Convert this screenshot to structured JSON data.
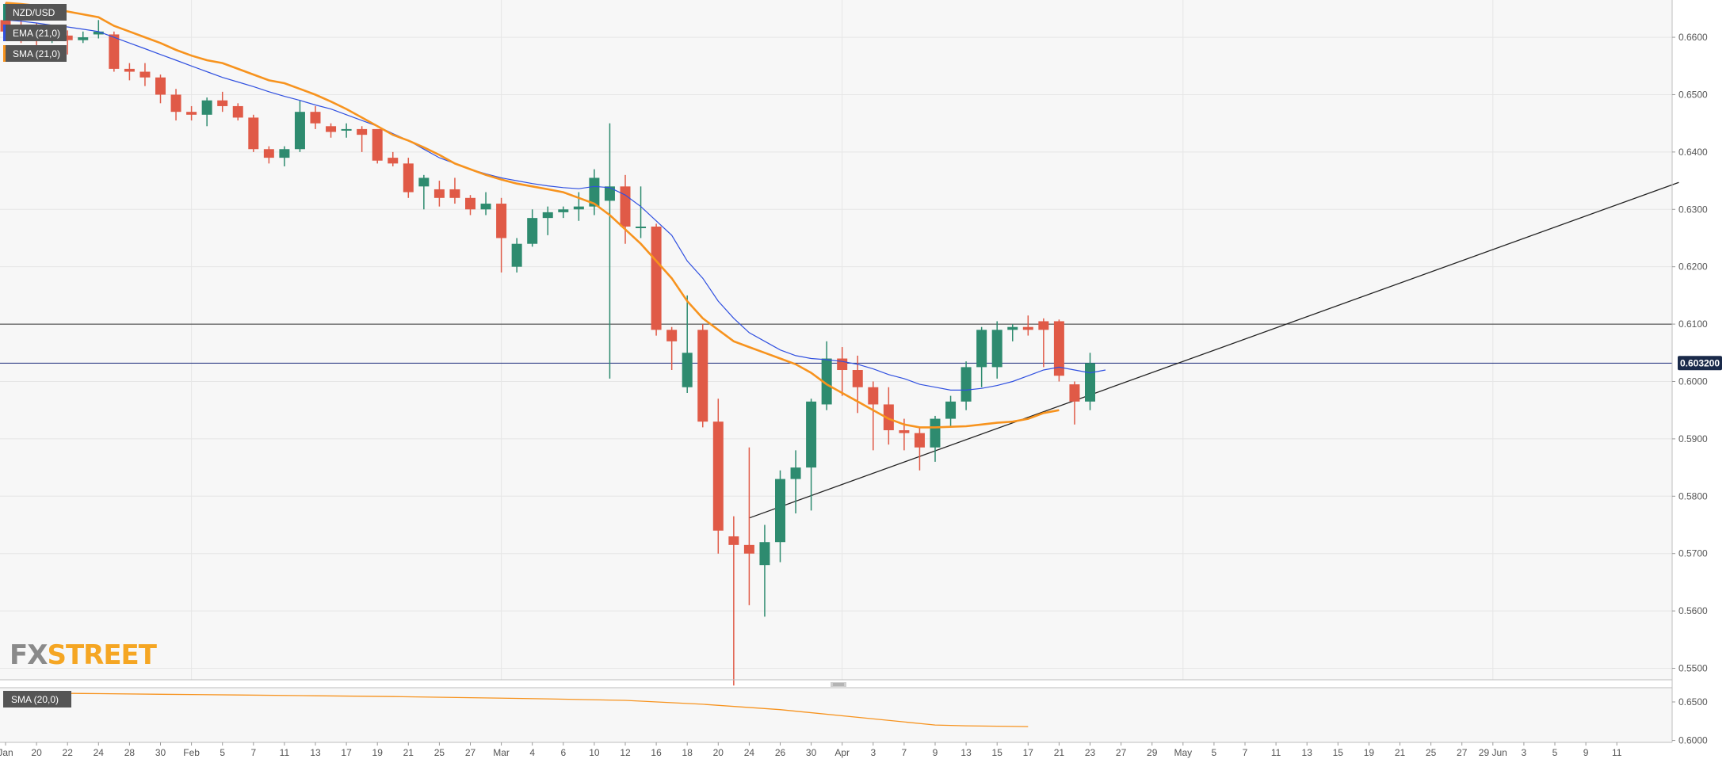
{
  "chart_data": [
    {
      "type": "candlestick",
      "symbol": "NZD/USD",
      "indicators": [
        {
          "label": "EMA (21,0)",
          "color": "#3050e0"
        },
        {
          "label": "SMA (21,0)",
          "color": "#f7931e"
        }
      ],
      "current_price_label": "0.603200",
      "current_price": 0.6032,
      "resistance_level": 0.61,
      "trendline": {
        "from": {
          "index": 48,
          "y": 0.5762
        },
        "to": {
          "index": 108,
          "y": 0.6347
        }
      },
      "ylim": [
        0.548,
        0.6665
      ],
      "y_ticks": [
        "0.6600",
        "0.6500",
        "0.6400",
        "0.6300",
        "0.6200",
        "0.6100",
        "0.6000",
        "0.5900",
        "0.5800",
        "0.5700",
        "0.5600",
        "0.5500"
      ],
      "x_ticks": [
        {
          "label": "Jan",
          "index": 0
        },
        {
          "label": "20",
          "index": 2
        },
        {
          "label": "22",
          "index": 4
        },
        {
          "label": "24",
          "index": 6
        },
        {
          "label": "28",
          "index": 8
        },
        {
          "label": "30",
          "index": 10
        },
        {
          "label": "Feb",
          "index": 12
        },
        {
          "label": "5",
          "index": 14
        },
        {
          "label": "7",
          "index": 16
        },
        {
          "label": "11",
          "index": 18
        },
        {
          "label": "13",
          "index": 20
        },
        {
          "label": "17",
          "index": 22
        },
        {
          "label": "19",
          "index": 24
        },
        {
          "label": "21",
          "index": 26
        },
        {
          "label": "25",
          "index": 28
        },
        {
          "label": "27",
          "index": 30
        },
        {
          "label": "Mar",
          "index": 32
        },
        {
          "label": "4",
          "index": 34
        },
        {
          "label": "6",
          "index": 36
        },
        {
          "label": "10",
          "index": 38
        },
        {
          "label": "12",
          "index": 40
        },
        {
          "label": "16",
          "index": 42
        },
        {
          "label": "18",
          "index": 44
        },
        {
          "label": "20",
          "index": 46
        },
        {
          "label": "24",
          "index": 48
        },
        {
          "label": "26",
          "index": 50
        },
        {
          "label": "30",
          "index": 52
        },
        {
          "label": "Apr",
          "index": 54
        },
        {
          "label": "3",
          "index": 56
        },
        {
          "label": "7",
          "index": 58
        },
        {
          "label": "9",
          "index": 60
        },
        {
          "label": "13",
          "index": 62
        },
        {
          "label": "15",
          "index": 64
        },
        {
          "label": "17",
          "index": 66
        },
        {
          "label": "21",
          "index": 68
        },
        {
          "label": "23",
          "index": 70
        },
        {
          "label": "27",
          "index": 72
        },
        {
          "label": "29",
          "index": 74
        },
        {
          "label": "May",
          "index": 76
        },
        {
          "label": "5",
          "index": 78
        },
        {
          "label": "7",
          "index": 80
        },
        {
          "label": "11",
          "index": 82
        },
        {
          "label": "13",
          "index": 84
        },
        {
          "label": "15",
          "index": 86
        },
        {
          "label": "19",
          "index": 88
        },
        {
          "label": "21",
          "index": 90
        },
        {
          "label": "25",
          "index": 92
        },
        {
          "label": "27",
          "index": 94
        },
        {
          "label": "29 Jun",
          "index": 96
        },
        {
          "label": "3",
          "index": 98
        },
        {
          "label": "5",
          "index": 100
        },
        {
          "label": "9",
          "index": 102
        },
        {
          "label": "11",
          "index": 104
        }
      ],
      "candles": [
        [
          0.663,
          0.666,
          0.66,
          0.661
        ],
        [
          0.661,
          0.663,
          0.659,
          0.6605
        ],
        [
          0.6605,
          0.6625,
          0.6585,
          0.66
        ],
        [
          0.66,
          0.662,
          0.659,
          0.6603
        ],
        [
          0.6603,
          0.6612,
          0.657,
          0.6595
        ],
        [
          0.6595,
          0.661,
          0.659,
          0.66
        ],
        [
          0.6605,
          0.663,
          0.6598,
          0.661
        ],
        [
          0.6605,
          0.661,
          0.654,
          0.6545
        ],
        [
          0.6545,
          0.6555,
          0.6525,
          0.654
        ],
        [
          0.654,
          0.6555,
          0.6515,
          0.653
        ],
        [
          0.653,
          0.6535,
          0.6485,
          0.65
        ],
        [
          0.65,
          0.651,
          0.6455,
          0.647
        ],
        [
          0.647,
          0.648,
          0.6455,
          0.6465
        ],
        [
          0.6465,
          0.6495,
          0.6445,
          0.649
        ],
        [
          0.649,
          0.6505,
          0.647,
          0.648
        ],
        [
          0.648,
          0.6485,
          0.6455,
          0.646
        ],
        [
          0.646,
          0.6465,
          0.64,
          0.6405
        ],
        [
          0.6405,
          0.641,
          0.638,
          0.639
        ],
        [
          0.639,
          0.641,
          0.6375,
          0.6405
        ],
        [
          0.6405,
          0.649,
          0.64,
          0.647
        ],
        [
          0.647,
          0.648,
          0.644,
          0.645
        ],
        [
          0.6445,
          0.645,
          0.6425,
          0.6435
        ],
        [
          0.644,
          0.645,
          0.6425,
          0.644
        ],
        [
          0.644,
          0.6445,
          0.64,
          0.643
        ],
        [
          0.644,
          0.644,
          0.638,
          0.6385
        ],
        [
          0.639,
          0.64,
          0.6375,
          0.638
        ],
        [
          0.638,
          0.639,
          0.632,
          0.633
        ],
        [
          0.634,
          0.636,
          0.63,
          0.6355
        ],
        [
          0.6335,
          0.635,
          0.6305,
          0.632
        ],
        [
          0.6335,
          0.6355,
          0.631,
          0.632
        ],
        [
          0.632,
          0.6325,
          0.629,
          0.63
        ],
        [
          0.63,
          0.633,
          0.629,
          0.631
        ],
        [
          0.631,
          0.632,
          0.619,
          0.625
        ],
        [
          0.62,
          0.625,
          0.619,
          0.624
        ],
        [
          0.624,
          0.63,
          0.6235,
          0.6285
        ],
        [
          0.6285,
          0.6305,
          0.6255,
          0.6295
        ],
        [
          0.6295,
          0.6305,
          0.6285,
          0.63
        ],
        [
          0.63,
          0.633,
          0.628,
          0.6305
        ],
        [
          0.6305,
          0.637,
          0.629,
          0.6355
        ],
        [
          0.6315,
          0.645,
          0.6005,
          0.634
        ],
        [
          0.634,
          0.636,
          0.624,
          0.627
        ],
        [
          0.627,
          0.634,
          0.625,
          0.627
        ],
        [
          0.627,
          0.6275,
          0.608,
          0.609
        ],
        [
          0.609,
          0.6095,
          0.602,
          0.607
        ],
        [
          0.599,
          0.615,
          0.598,
          0.605
        ],
        [
          0.609,
          0.61,
          0.592,
          0.593
        ],
        [
          0.593,
          0.597,
          0.57,
          0.574
        ],
        [
          0.573,
          0.5765,
          0.547,
          0.5715
        ],
        [
          0.5715,
          0.5885,
          0.561,
          0.57
        ],
        [
          0.568,
          0.575,
          0.559,
          0.572
        ],
        [
          0.572,
          0.5845,
          0.5685,
          0.583
        ],
        [
          0.583,
          0.588,
          0.577,
          0.585
        ],
        [
          0.585,
          0.597,
          0.5775,
          0.5965
        ],
        [
          0.596,
          0.607,
          0.595,
          0.604
        ],
        [
          0.604,
          0.606,
          0.5975,
          0.602
        ],
        [
          0.602,
          0.6045,
          0.5945,
          0.599
        ],
        [
          0.599,
          0.6,
          0.588,
          0.596
        ],
        [
          0.596,
          0.599,
          0.589,
          0.5915
        ],
        [
          0.5915,
          0.5935,
          0.588,
          0.591
        ],
        [
          0.591,
          0.592,
          0.5845,
          0.5885
        ],
        [
          0.5885,
          0.594,
          0.586,
          0.5935
        ],
        [
          0.5935,
          0.5975,
          0.592,
          0.5965
        ],
        [
          0.5965,
          0.6035,
          0.595,
          0.6025
        ],
        [
          0.6025,
          0.6095,
          0.599,
          0.609
        ],
        [
          0.6025,
          0.6105,
          0.6005,
          0.609
        ],
        [
          0.609,
          0.61,
          0.607,
          0.6095
        ],
        [
          0.6095,
          0.6115,
          0.608,
          0.609
        ],
        [
          0.6105,
          0.611,
          0.6025,
          0.609
        ],
        [
          0.6105,
          0.6108,
          0.6,
          0.601
        ],
        [
          0.5995,
          0.6,
          0.5925,
          0.5965
        ],
        [
          0.5965,
          0.605,
          0.595,
          0.6032
        ]
      ],
      "ema21": [
        0.663,
        0.6628,
        0.6625,
        0.6621,
        0.6618,
        0.6614,
        0.661,
        0.66,
        0.659,
        0.658,
        0.657,
        0.656,
        0.655,
        0.654,
        0.653,
        0.6522,
        0.6514,
        0.6505,
        0.6497,
        0.649,
        0.6482,
        0.6475,
        0.6465,
        0.6455,
        0.6445,
        0.6432,
        0.642,
        0.6405,
        0.639,
        0.638,
        0.637,
        0.6362,
        0.6355,
        0.635,
        0.6345,
        0.6341,
        0.6338,
        0.6336,
        0.634,
        0.6338,
        0.6325,
        0.6305,
        0.628,
        0.6255,
        0.621,
        0.618,
        0.614,
        0.611,
        0.6085,
        0.607,
        0.6055,
        0.6045,
        0.604,
        0.6038,
        0.6035,
        0.603,
        0.6022,
        0.6012,
        0.6005,
        0.5995,
        0.599,
        0.5985,
        0.5985,
        0.5988,
        0.5993,
        0.6,
        0.601,
        0.602,
        0.6025,
        0.602,
        0.6015,
        0.602
      ],
      "sma21": [
        0.666,
        0.6658,
        0.6655,
        0.665,
        0.6645,
        0.664,
        0.6635,
        0.662,
        0.661,
        0.66,
        0.659,
        0.6578,
        0.6568,
        0.656,
        0.6555,
        0.6545,
        0.6535,
        0.6525,
        0.652,
        0.651,
        0.65,
        0.6488,
        0.6475,
        0.646,
        0.6445,
        0.643,
        0.642,
        0.6408,
        0.6395,
        0.638,
        0.637,
        0.636,
        0.6352,
        0.6345,
        0.634,
        0.6335,
        0.633,
        0.632,
        0.631,
        0.629,
        0.6265,
        0.624,
        0.621,
        0.618,
        0.614,
        0.611,
        0.609,
        0.607,
        0.606,
        0.605,
        0.604,
        0.603,
        0.6015,
        0.5995,
        0.598,
        0.5965,
        0.595,
        0.5935,
        0.5925,
        0.592,
        0.592,
        0.5921,
        0.5922,
        0.5925,
        0.5928,
        0.593,
        0.5935,
        0.5945,
        0.595
      ]
    },
    {
      "type": "line",
      "label": "SMA (20,0)",
      "color": "#f7931e",
      "ylim": [
        0.5975,
        0.6685
      ],
      "y_ticks": [
        "0.6500",
        "0.6000"
      ],
      "x": [
        0,
        5,
        10,
        15,
        20,
        25,
        30,
        35,
        40,
        45,
        50,
        55,
        60,
        62,
        64,
        66
      ],
      "values": [
        0.662,
        0.661,
        0.66,
        0.659,
        0.658,
        0.657,
        0.6555,
        0.654,
        0.652,
        0.647,
        0.64,
        0.63,
        0.62,
        0.619,
        0.6185,
        0.618
      ]
    }
  ],
  "watermark": {
    "part1": "FX",
    "part2": "STREET",
    "color1": "#8a8a8a",
    "color2": "#f5a623"
  },
  "colors": {
    "bull": "#2e8b6f",
    "bear": "#e05a47",
    "ema": "#3050e0",
    "sma": "#f7931e",
    "background": "#f7f7f7",
    "grid": "#e6e6e6",
    "price_label_bg": "#1a2a4a"
  }
}
